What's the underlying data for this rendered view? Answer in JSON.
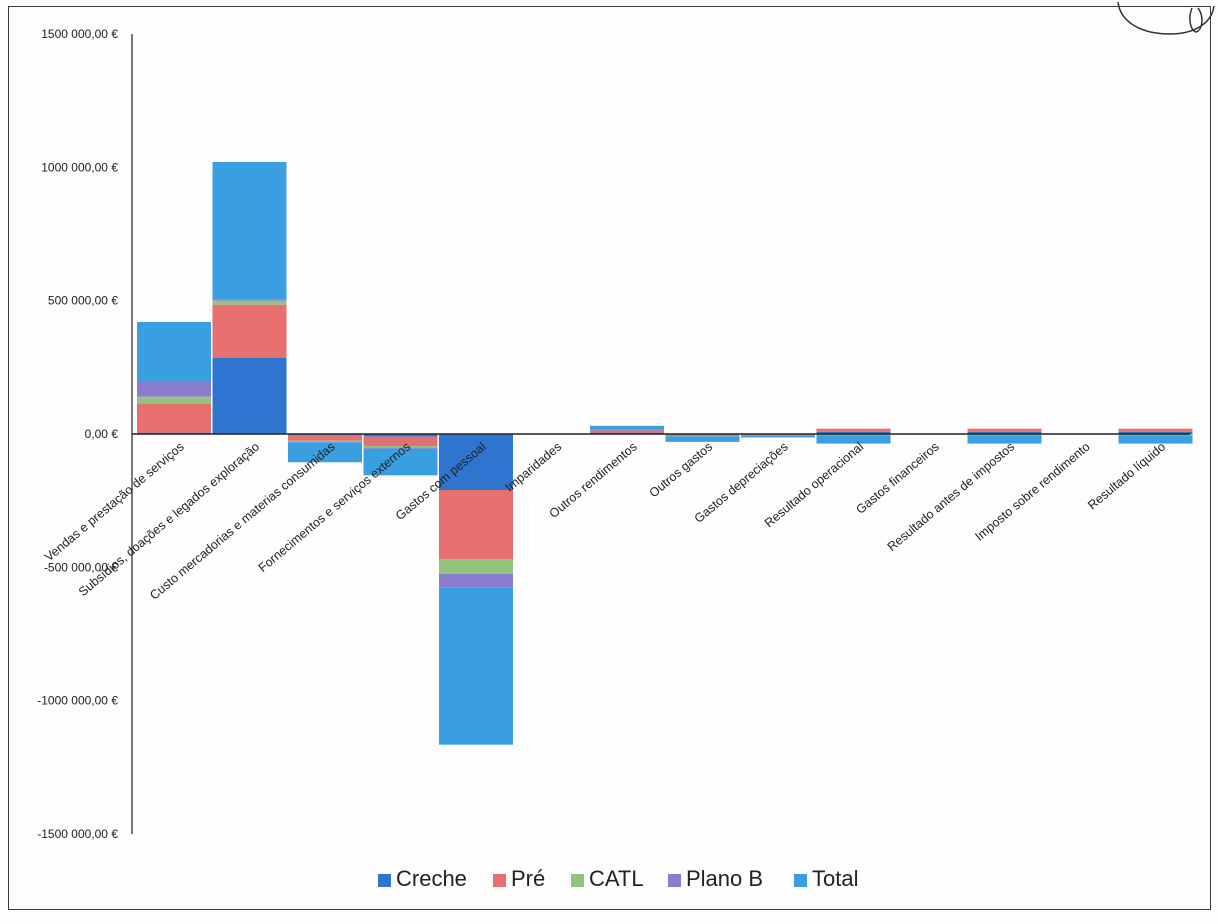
{
  "chart_data": {
    "type": "bar",
    "stacked": true,
    "categories": [
      "Vendas e prestação de serviços",
      "Subsídios, doações e legados exploração",
      "Custo mercadorias e materias consumidas",
      "Fornecimentos e serviços externos",
      "Gastos com pessoal",
      "Imparidades",
      "Outros rendimentos",
      "Outros gastos",
      "Gastos depreciações",
      "Resultado operacional",
      "Gastos financeiros",
      "Resultado antes de impostos",
      "Imposto sobre rendimento",
      "Resultado líquido"
    ],
    "series": [
      {
        "name": "Creche",
        "color": "#2e75d0",
        "values": [
          5000,
          285000,
          -5000,
          -10000,
          -210000,
          0,
          5000,
          -3000,
          -2000,
          8000,
          0,
          8000,
          0,
          8000
        ]
      },
      {
        "name": "Pré",
        "color": "#e86f6f",
        "values": [
          110000,
          200000,
          -20000,
          -35000,
          -260000,
          0,
          8000,
          -5000,
          -3000,
          12000,
          0,
          12000,
          0,
          12000
        ]
      },
      {
        "name": "CATL",
        "color": "#92c47d",
        "values": [
          25000,
          15000,
          -4000,
          -6000,
          -55000,
          0,
          2000,
          -1000,
          -500,
          -4000,
          0,
          -4000,
          0,
          -4000
        ]
      },
      {
        "name": "Plano B",
        "color": "#8a7ccf",
        "values": [
          55000,
          5000,
          -2000,
          -4000,
          -50000,
          0,
          500,
          -500,
          -500,
          -2000,
          0,
          -2000,
          0,
          -2000
        ]
      },
      {
        "name": "Total",
        "color": "#3a9fe0",
        "values": [
          225000,
          515000,
          -75000,
          -100000,
          -590000,
          0,
          15000,
          -20000,
          -7000,
          -30000,
          0,
          -30000,
          0,
          -30000
        ]
      }
    ],
    "ylim": [
      -1500000,
      1500000
    ],
    "yticks": [
      "1500 000,00 €",
      "1000 000,00 €",
      "500 000,00 €",
      "0,00 €",
      "-500 000,00 €",
      "-1000 000,00 €",
      "-1500 000,00 €"
    ],
    "legend_position": "bottom",
    "grid": false
  }
}
